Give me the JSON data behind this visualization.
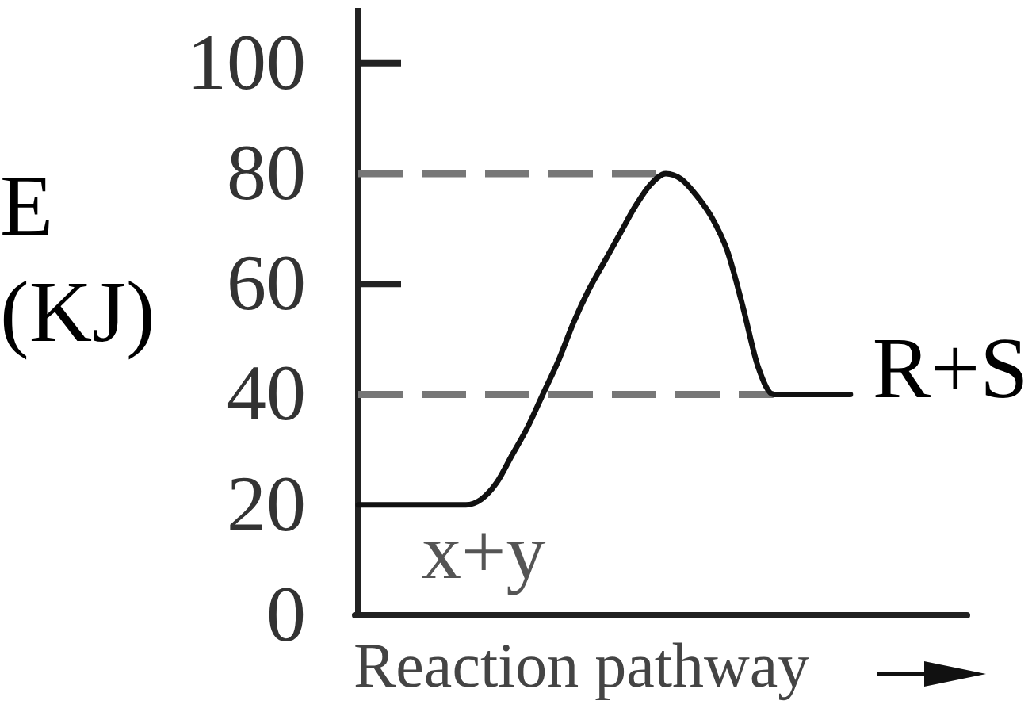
{
  "chart_data": {
    "type": "line",
    "xlabel": "Reaction pathway",
    "ylabel": "E (KJ)",
    "categories": [
      null,
      null,
      null,
      null,
      null,
      null,
      null,
      null,
      null,
      null,
      null,
      null,
      null,
      null,
      null,
      null,
      null,
      null,
      null,
      null,
      null,
      null,
      null,
      null,
      null,
      null,
      null,
      null,
      null,
      null,
      null,
      null,
      null
    ],
    "series": [
      {
        "color": "#111111",
        "values": [
          20,
          20,
          20,
          20,
          20,
          20,
          20,
          20,
          21,
          24,
          29,
          34,
          40,
          46,
          53,
          59,
          64,
          69,
          74,
          78,
          80,
          79,
          76,
          72,
          66,
          56,
          45,
          40,
          40,
          40,
          40,
          40,
          40
        ]
      }
    ],
    "ylim": [
      0,
      110
    ],
    "yticks": [
      0,
      20,
      40,
      60,
      80,
      100
    ],
    "tick_labels": "y",
    "ref_lines": [
      {
        "axis": "y",
        "value": 80,
        "color": "#777777",
        "line_style": "dashed"
      },
      {
        "axis": "y",
        "value": 40,
        "color": "#777777",
        "line_style": "dashed"
      }
    ],
    "annotations": [
      "x+y",
      "R+S"
    ]
  }
}
